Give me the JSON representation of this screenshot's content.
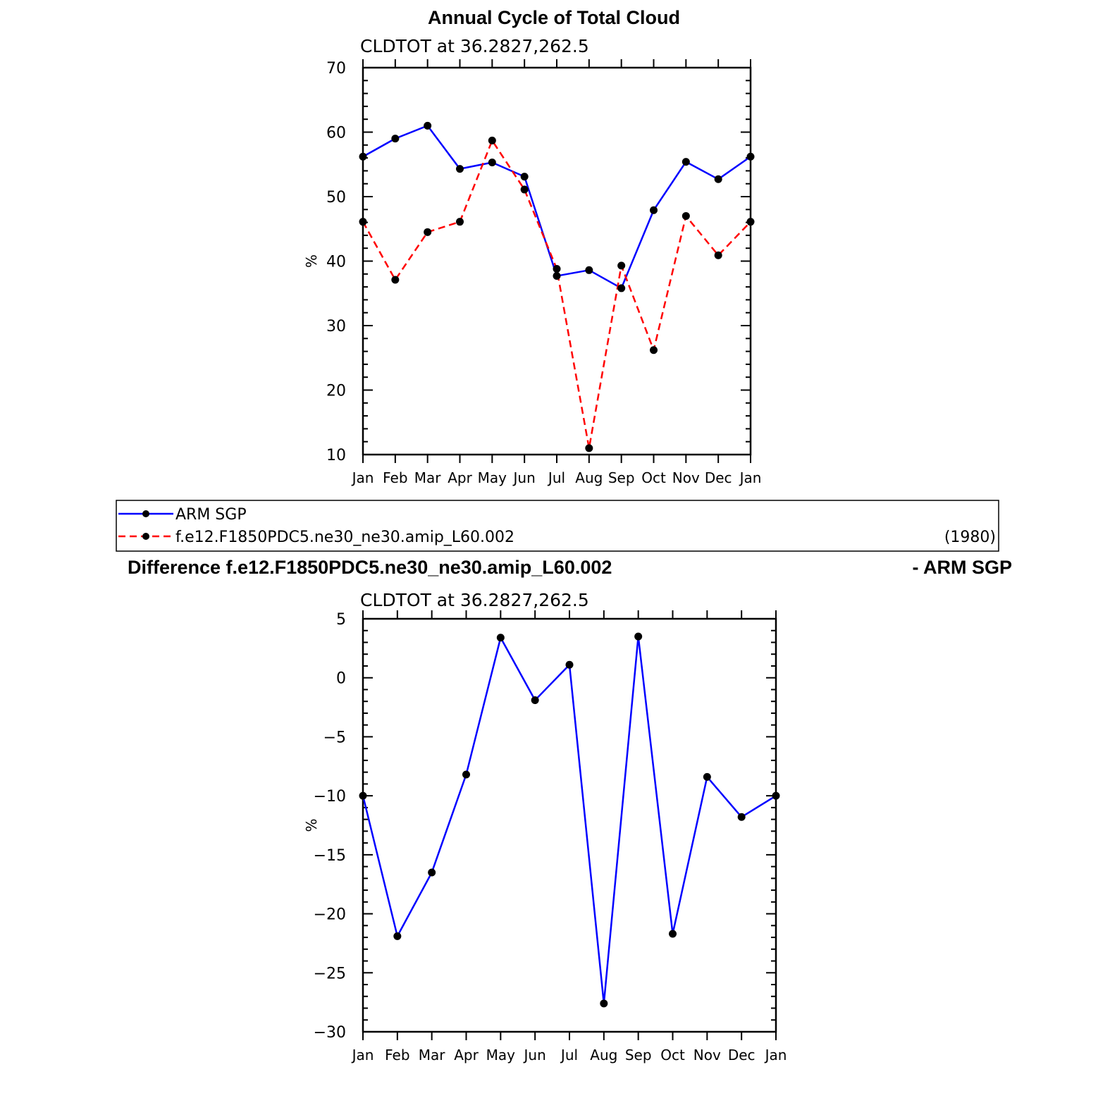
{
  "top_title": "Annual Cycle of Total Cloud",
  "bottom_title": {
    "left": "Difference f.e12.F1850PDC5.ne30_ne30.amip_L60.002",
    "right": "- ARM SGP"
  },
  "legend": {
    "years": "(1980)"
  },
  "colors": {
    "obs": "#0000ff",
    "model": "#ff0000",
    "diff": "#0000ff",
    "marker": "#000000"
  },
  "chart_data": [
    {
      "type": "line",
      "subtitle": "CLDTOT at 36.2827,262.5",
      "ylabel": "%",
      "ylim": [
        10,
        70
      ],
      "yticks": [
        10,
        20,
        30,
        40,
        50,
        60,
        70
      ],
      "categories": [
        "Jan",
        "Feb",
        "Mar",
        "Apr",
        "May",
        "Jun",
        "Jul",
        "Aug",
        "Sep",
        "Oct",
        "Nov",
        "Dec",
        "Jan"
      ],
      "series": [
        {
          "name": "ARM SGP",
          "style": "solid",
          "values": [
            56.2,
            59.0,
            61.0,
            54.3,
            55.3,
            53.1,
            37.7,
            38.6,
            35.8,
            47.9,
            55.4,
            52.7,
            56.2
          ]
        },
        {
          "name": "f.e12.F1850PDC5.ne30_ne30.amip_L60.002",
          "style": "dashed",
          "values": [
            46.1,
            37.1,
            44.5,
            46.1,
            58.7,
            51.1,
            38.8,
            11.0,
            39.3,
            26.2,
            47.0,
            40.9,
            46.1
          ]
        }
      ]
    },
    {
      "type": "line",
      "subtitle": "CLDTOT at 36.2827,262.5",
      "ylabel": "%",
      "ylim": [
        -30,
        5
      ],
      "yticks": [
        -30,
        -25,
        -20,
        -15,
        -10,
        -5,
        0,
        5
      ],
      "ytick_labels": [
        "−30",
        "−25",
        "−20",
        "−15",
        "−10",
        "−5",
        "0",
        "5"
      ],
      "categories": [
        "Jan",
        "Feb",
        "Mar",
        "Apr",
        "May",
        "Jun",
        "Jul",
        "Aug",
        "Sep",
        "Oct",
        "Nov",
        "Dec",
        "Jan"
      ],
      "series": [
        {
          "style": "solid",
          "values": [
            -10.0,
            -21.9,
            -16.5,
            -8.2,
            3.4,
            -1.9,
            1.1,
            -27.6,
            3.5,
            -21.7,
            -8.4,
            -11.8,
            -10.0
          ]
        }
      ]
    }
  ]
}
